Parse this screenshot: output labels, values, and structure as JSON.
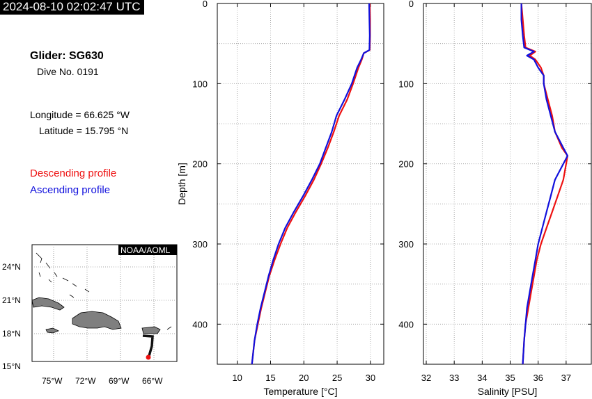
{
  "timestamp": "2024-08-10 02:02:47 UTC",
  "info": {
    "glider": "Glider: SG630",
    "dive": "Dive No. 0191",
    "longitude": "Longitude = 66.625 °W",
    "latitude": "Latitude = 15.795 °N"
  },
  "legend": {
    "descending": "Descending profile",
    "ascending": "Ascending profile"
  },
  "colors": {
    "descending": "#ee1111",
    "ascending": "#1111dd"
  },
  "map": {
    "badge": "NOAA/AOML",
    "lat_ticks": [
      "24°N",
      "21°N",
      "18°N",
      "15°N"
    ],
    "lon_ticks": [
      "75°W",
      "72°W",
      "69°W",
      "66°W"
    ]
  },
  "chart_data": [
    {
      "type": "line",
      "xlabel": "Temperature [°C]",
      "ylabel": "Depth [m]",
      "xlim": [
        7,
        32
      ],
      "ylim": [
        450,
        0
      ],
      "xticks": [
        10,
        15,
        20,
        25,
        30
      ],
      "yticks": [
        0,
        100,
        200,
        300,
        400
      ],
      "grid": true,
      "series": [
        {
          "name": "Descending profile",
          "depth": [
            0,
            20,
            40,
            58,
            62,
            70,
            80,
            100,
            120,
            140,
            160,
            180,
            200,
            220,
            240,
            260,
            280,
            300,
            320,
            340,
            360,
            380,
            400,
            420,
            450
          ],
          "values": [
            29.9,
            29.95,
            29.95,
            29.9,
            29.0,
            28.7,
            28.2,
            27.4,
            26.5,
            25.3,
            24.5,
            23.6,
            22.6,
            21.5,
            20.2,
            18.8,
            17.5,
            16.5,
            15.6,
            14.8,
            14.2,
            13.6,
            13.1,
            12.6,
            12.2
          ]
        },
        {
          "name": "Ascending profile",
          "depth": [
            0,
            20,
            40,
            58,
            62,
            70,
            80,
            100,
            120,
            140,
            160,
            180,
            200,
            220,
            240,
            260,
            280,
            300,
            320,
            340,
            360,
            380,
            400,
            420,
            450
          ],
          "values": [
            29.8,
            29.85,
            29.9,
            29.85,
            29.0,
            28.6,
            28.0,
            27.2,
            26.1,
            24.9,
            24.2,
            23.3,
            22.4,
            21.2,
            19.9,
            18.5,
            17.2,
            16.2,
            15.4,
            14.7,
            14.1,
            13.5,
            13.0,
            12.6,
            12.2
          ]
        }
      ]
    },
    {
      "type": "line",
      "xlabel": "Salinity [PSU]",
      "ylabel": "",
      "xlim": [
        31.9,
        37.9
      ],
      "ylim": [
        450,
        0
      ],
      "xticks": [
        32,
        33,
        34,
        35,
        36,
        37
      ],
      "yticks": [
        0,
        100,
        200,
        300,
        400
      ],
      "grid": true,
      "series": [
        {
          "name": "Descending profile",
          "depth": [
            0,
            20,
            40,
            55,
            60,
            65,
            70,
            80,
            90,
            100,
            120,
            140,
            160,
            180,
            190,
            200,
            220,
            240,
            260,
            280,
            300,
            320,
            340,
            360,
            380,
            400,
            420,
            450
          ],
          "values": [
            35.4,
            35.45,
            35.5,
            35.55,
            35.9,
            35.7,
            35.9,
            36.1,
            36.2,
            36.2,
            36.35,
            36.5,
            36.6,
            36.85,
            37.05,
            37.0,
            36.9,
            36.7,
            36.5,
            36.3,
            36.1,
            35.95,
            35.85,
            35.75,
            35.65,
            35.55,
            35.5,
            35.45
          ]
        },
        {
          "name": "Ascending profile",
          "depth": [
            0,
            20,
            40,
            55,
            60,
            65,
            70,
            80,
            90,
            100,
            120,
            140,
            160,
            180,
            190,
            200,
            220,
            240,
            260,
            280,
            300,
            320,
            340,
            360,
            380,
            400,
            420,
            450
          ],
          "values": [
            35.4,
            35.4,
            35.45,
            35.5,
            35.85,
            35.6,
            35.85,
            36.0,
            36.2,
            36.2,
            36.3,
            36.45,
            36.6,
            36.9,
            37.05,
            36.9,
            36.6,
            36.45,
            36.3,
            36.15,
            36.0,
            35.9,
            35.8,
            35.7,
            35.6,
            35.55,
            35.5,
            35.45
          ]
        }
      ]
    }
  ]
}
